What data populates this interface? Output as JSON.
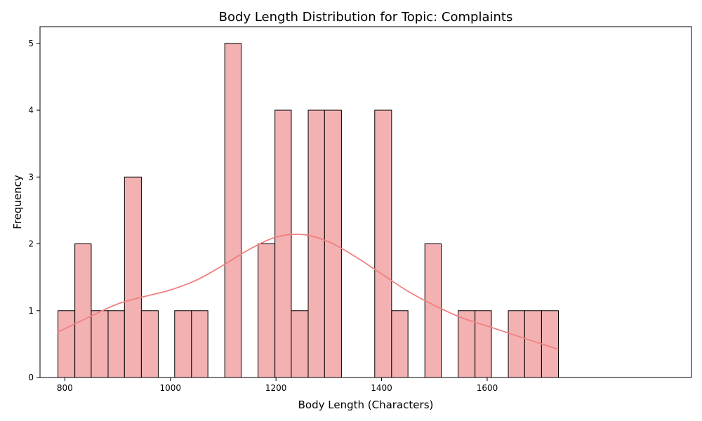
{
  "chart_data": {
    "type": "bar",
    "subtype": "histogram-with-kde",
    "title": "Body Length Distribution for Topic: Complaints",
    "xlabel": "Body Length (Characters)",
    "ylabel": "Frequency",
    "xlim": [
      753,
      1987
    ],
    "ylim": [
      0,
      5.25
    ],
    "x_ticks": [
      800,
      1000,
      1200,
      1400,
      1600
    ],
    "y_ticks": [
      0,
      1,
      2,
      3,
      4,
      5
    ],
    "grid": false,
    "bar_color": "#f4b1b2",
    "bar_edge_color": "#000000",
    "kde_color": "#f08080",
    "bins": [
      {
        "start": 787,
        "end": 819,
        "count": 1
      },
      {
        "start": 819,
        "end": 850,
        "count": 2
      },
      {
        "start": 850,
        "end": 882,
        "count": 1
      },
      {
        "start": 882,
        "end": 913,
        "count": 1
      },
      {
        "start": 913,
        "end": 945,
        "count": 3
      },
      {
        "start": 945,
        "end": 977,
        "count": 1
      },
      {
        "start": 977,
        "end": 1008,
        "count": 0
      },
      {
        "start": 1008,
        "end": 1040,
        "count": 1
      },
      {
        "start": 1040,
        "end": 1071,
        "count": 1
      },
      {
        "start": 1071,
        "end": 1103,
        "count": 0
      },
      {
        "start": 1103,
        "end": 1134,
        "count": 5
      },
      {
        "start": 1134,
        "end": 1166,
        "count": 0
      },
      {
        "start": 1166,
        "end": 1198,
        "count": 2
      },
      {
        "start": 1198,
        "end": 1229,
        "count": 4
      },
      {
        "start": 1229,
        "end": 1261,
        "count": 1
      },
      {
        "start": 1261,
        "end": 1292,
        "count": 4
      },
      {
        "start": 1292,
        "end": 1324,
        "count": 4
      },
      {
        "start": 1324,
        "end": 1356,
        "count": 0
      },
      {
        "start": 1356,
        "end": 1387,
        "count": 0
      },
      {
        "start": 1387,
        "end": 1419,
        "count": 4
      },
      {
        "start": 1419,
        "end": 1450,
        "count": 1
      },
      {
        "start": 1450,
        "end": 1482,
        "count": 0
      },
      {
        "start": 1482,
        "end": 1513,
        "count": 2
      },
      {
        "start": 1513,
        "end": 1545,
        "count": 0
      },
      {
        "start": 1545,
        "end": 1577,
        "count": 1
      },
      {
        "start": 1577,
        "end": 1608,
        "count": 1
      },
      {
        "start": 1608,
        "end": 1640,
        "count": 0
      },
      {
        "start": 1640,
        "end": 1671,
        "count": 1
      },
      {
        "start": 1671,
        "end": 1703,
        "count": 1
      },
      {
        "start": 1703,
        "end": 1735,
        "count": 1
      }
    ],
    "kde": {
      "x": [
        787,
        850,
        900,
        950,
        1000,
        1050,
        1100,
        1150,
        1200,
        1250,
        1300,
        1350,
        1400,
        1450,
        1500,
        1550,
        1600,
        1650,
        1700,
        1735
      ],
      "y": [
        0.68,
        0.92,
        1.1,
        1.21,
        1.31,
        1.46,
        1.68,
        1.92,
        2.1,
        2.14,
        2.03,
        1.81,
        1.55,
        1.29,
        1.08,
        0.9,
        0.77,
        0.64,
        0.51,
        0.42
      ]
    }
  }
}
